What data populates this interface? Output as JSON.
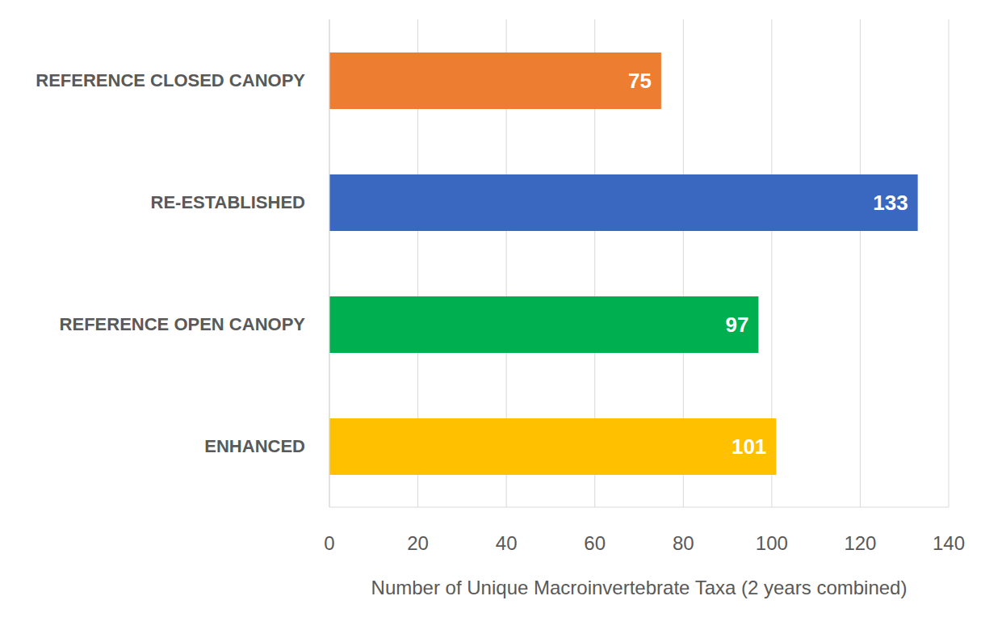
{
  "chart_data": {
    "type": "bar",
    "orientation": "horizontal",
    "categories": [
      "REFERENCE CLOSED CANOPY",
      "RE-ESTABLISHED",
      "REFERENCE OPEN CANOPY",
      "ENHANCED"
    ],
    "values": [
      75,
      133,
      97,
      101
    ],
    "colors": [
      "#ED7D31",
      "#3A67C0",
      "#00B050",
      "#FFC000"
    ],
    "xlabel": "Number of Unique Macroinvertebrate Taxa (2 years combined)",
    "xlim": [
      0,
      140
    ],
    "xticks": [
      0,
      20,
      40,
      60,
      80,
      100,
      120,
      140
    ],
    "grid": true,
    "data_labels": true
  }
}
